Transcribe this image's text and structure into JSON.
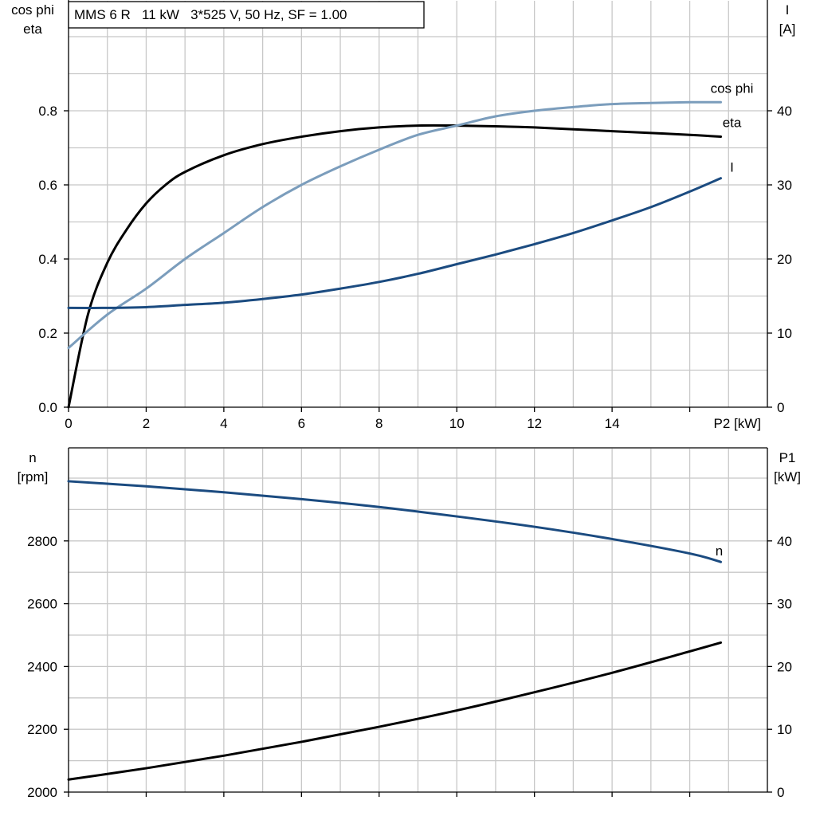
{
  "chart_data": [
    {
      "type": "line",
      "title": "MMS 6 R   11 kW   3*525 V, 50 Hz, SF = 1.00",
      "xlabel": "P2 [kW]",
      "ylabel_left": [
        "cos phi",
        "eta"
      ],
      "ylabel_right": [
        "I",
        "[A]"
      ],
      "xlim": [
        0,
        18
      ],
      "ylim_left": [
        0,
        1.0
      ],
      "ylim_right": [
        0,
        50
      ],
      "x_ticks": [
        0,
        2,
        4,
        6,
        8,
        10,
        12,
        14
      ],
      "y_ticks_left": [
        0.0,
        0.2,
        0.4,
        0.6,
        0.8
      ],
      "y_tick_labels_left": [
        "0.0",
        "0.2",
        "0.4",
        "0.6",
        "0.8"
      ],
      "y_ticks_right": [
        0,
        10,
        20,
        30,
        40
      ],
      "grid": true,
      "series": [
        {
          "name": "eta",
          "axis": "left",
          "color": "#000000",
          "x": [
            0,
            0.5,
            1,
            1.5,
            2,
            2.5,
            3,
            4,
            5,
            6,
            7,
            8,
            9,
            10,
            11,
            12,
            13,
            14,
            15,
            16,
            16.8
          ],
          "y": [
            0.0,
            0.25,
            0.39,
            0.48,
            0.55,
            0.6,
            0.635,
            0.68,
            0.71,
            0.73,
            0.745,
            0.755,
            0.76,
            0.76,
            0.758,
            0.755,
            0.75,
            0.745,
            0.74,
            0.735,
            0.73
          ]
        },
        {
          "name": "cos phi",
          "axis": "left",
          "color": "#7b9dbc",
          "x": [
            0,
            1,
            2,
            3,
            4,
            5,
            6,
            7,
            8,
            9,
            10,
            11,
            12,
            13,
            14,
            15,
            16,
            16.8
          ],
          "y": [
            0.16,
            0.25,
            0.32,
            0.4,
            0.47,
            0.54,
            0.6,
            0.65,
            0.695,
            0.735,
            0.76,
            0.785,
            0.8,
            0.81,
            0.818,
            0.821,
            0.823,
            0.823
          ]
        },
        {
          "name": "I",
          "axis": "right",
          "color": "#1b4b80",
          "x": [
            0,
            1,
            2,
            3,
            4,
            5,
            6,
            7,
            8,
            9,
            10,
            11,
            12,
            13,
            14,
            15,
            16,
            16.8
          ],
          "y": [
            13.4,
            13.4,
            13.5,
            13.8,
            14.1,
            14.6,
            15.2,
            16.0,
            16.9,
            18.0,
            19.3,
            20.6,
            22.0,
            23.5,
            25.2,
            27.0,
            29.1,
            30.9
          ]
        }
      ]
    },
    {
      "type": "line",
      "xlabel": "",
      "ylabel_left": [
        "n",
        "[rpm]"
      ],
      "ylabel_right": [
        "P1",
        "[kW]"
      ],
      "xlim": [
        0,
        18
      ],
      "ylim_left": [
        2000,
        3000
      ],
      "ylim_right": [
        0,
        50
      ],
      "y_ticks_left": [
        2000,
        2200,
        2400,
        2600,
        2800
      ],
      "y_ticks_right": [
        0,
        10,
        20,
        30,
        40
      ],
      "grid": true,
      "series": [
        {
          "name": "n",
          "axis": "left",
          "color": "#1b4b80",
          "x": [
            0,
            2,
            4,
            6,
            8,
            10,
            12,
            14,
            16,
            16.8
          ],
          "y": [
            2990,
            2974,
            2955,
            2933,
            2908,
            2878,
            2845,
            2806,
            2760,
            2733
          ]
        },
        {
          "name": "P1",
          "axis": "right",
          "color": "#000000",
          "x": [
            0,
            2,
            4,
            6,
            8,
            10,
            12,
            14,
            16,
            16.8
          ],
          "y": [
            2.0,
            3.8,
            5.8,
            8.0,
            10.4,
            13.0,
            15.9,
            19.0,
            22.4,
            23.8
          ]
        }
      ]
    }
  ]
}
